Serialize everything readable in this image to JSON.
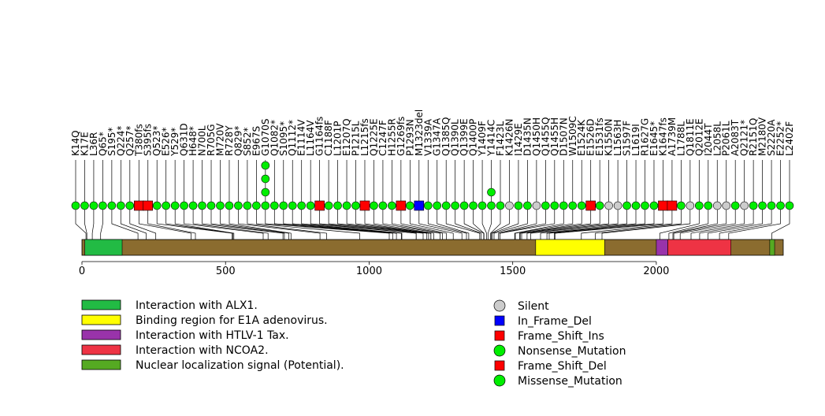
{
  "chart_data": {
    "type": "lollipop",
    "protein_length": 2442,
    "axis": {
      "ticks": [
        0,
        500,
        1000,
        1500,
        2000
      ]
    },
    "domains": [
      {
        "name": "Interaction with ALX1.",
        "start": 10,
        "end": 140,
        "color": "#22bb44"
      },
      {
        "name": "Binding region for E1A adenovirus.",
        "start": 1580,
        "end": 1820,
        "color": "#ffff00"
      },
      {
        "name": "Interaction with HTLV-1 Tax.",
        "start": 2000,
        "end": 2040,
        "color": "#9933aa"
      },
      {
        "name": "Interaction with NCOA2.",
        "start": 2040,
        "end": 2260,
        "color": "#ee3344"
      },
      {
        "name": "Nuclear localization signal (Potential).",
        "start": 2395,
        "end": 2412,
        "color": "#55aa22"
      }
    ],
    "backbone_color": "#8b6c2f",
    "mutation_legend": [
      {
        "label": "Silent",
        "color": "#cccccc",
        "shape": "circle"
      },
      {
        "label": "In_Frame_Del",
        "color": "#0000ff",
        "shape": "square"
      },
      {
        "label": "Frame_Shift_Ins",
        "color": "#ff0000",
        "shape": "square"
      },
      {
        "label": "Nonsense_Mutation",
        "color": "#00ee00",
        "shape": "circle"
      },
      {
        "label": "Frame_Shift_Del",
        "color": "#ff0000",
        "shape": "square"
      },
      {
        "label": "Missense_Mutation",
        "color": "#00ee00",
        "shape": "circle"
      }
    ],
    "mutations": [
      {
        "label": "K14Q",
        "pos": 14,
        "type": "Missense_Mutation",
        "count": 1
      },
      {
        "label": "K17E",
        "pos": 17,
        "type": "Missense_Mutation",
        "count": 1
      },
      {
        "label": "L36R",
        "pos": 36,
        "type": "Missense_Mutation",
        "count": 1
      },
      {
        "label": "Q65*",
        "pos": 65,
        "type": "Nonsense_Mutation",
        "count": 1
      },
      {
        "label": "S195*",
        "pos": 195,
        "type": "Nonsense_Mutation",
        "count": 1
      },
      {
        "label": "Q224*",
        "pos": 224,
        "type": "Nonsense_Mutation",
        "count": 1
      },
      {
        "label": "Q257*",
        "pos": 257,
        "type": "Nonsense_Mutation",
        "count": 1
      },
      {
        "label": "T380fs",
        "pos": 380,
        "type": "Frame_Shift_Del",
        "count": 1
      },
      {
        "label": "S395fs",
        "pos": 395,
        "type": "Frame_Shift_Del",
        "count": 1
      },
      {
        "label": "Q523*",
        "pos": 523,
        "type": "Nonsense_Mutation",
        "count": 1
      },
      {
        "label": "E526*",
        "pos": 526,
        "type": "Nonsense_Mutation",
        "count": 1
      },
      {
        "label": "Y529*",
        "pos": 529,
        "type": "Nonsense_Mutation",
        "count": 1
      },
      {
        "label": "Q631D",
        "pos": 631,
        "type": "Missense_Mutation",
        "count": 1
      },
      {
        "label": "H648*",
        "pos": 648,
        "type": "Nonsense_Mutation",
        "count": 1
      },
      {
        "label": "N700L",
        "pos": 700,
        "type": "Missense_Mutation",
        "count": 1
      },
      {
        "label": "R705G",
        "pos": 705,
        "type": "Missense_Mutation",
        "count": 1
      },
      {
        "label": "M720V",
        "pos": 720,
        "type": "Missense_Mutation",
        "count": 1
      },
      {
        "label": "R728Y",
        "pos": 728,
        "type": "Missense_Mutation",
        "count": 1
      },
      {
        "label": "Q829*",
        "pos": 829,
        "type": "Nonsense_Mutation",
        "count": 1
      },
      {
        "label": "S852*",
        "pos": 852,
        "type": "Nonsense_Mutation",
        "count": 1
      },
      {
        "label": "E967S",
        "pos": 967,
        "type": "Missense_Mutation",
        "count": 1
      },
      {
        "label": "G1070S",
        "pos": 1070,
        "type": "Missense_Mutation",
        "count": 4
      },
      {
        "label": "Q1082*",
        "pos": 1082,
        "type": "Nonsense_Mutation",
        "count": 1
      },
      {
        "label": "S1095*",
        "pos": 1095,
        "type": "Nonsense_Mutation",
        "count": 1
      },
      {
        "label": "Q1112*",
        "pos": 1112,
        "type": "Nonsense_Mutation",
        "count": 1
      },
      {
        "label": "E1114V",
        "pos": 1114,
        "type": "Missense_Mutation",
        "count": 1
      },
      {
        "label": "L1164V",
        "pos": 1164,
        "type": "Missense_Mutation",
        "count": 1
      },
      {
        "label": "G1164fs",
        "pos": 1164,
        "type": "Frame_Shift_Del",
        "count": 1
      },
      {
        "label": "C1188F",
        "pos": 1188,
        "type": "Missense_Mutation",
        "count": 1
      },
      {
        "label": "L1201P",
        "pos": 1201,
        "type": "Missense_Mutation",
        "count": 1
      },
      {
        "label": "E1207Q",
        "pos": 1207,
        "type": "Missense_Mutation",
        "count": 1
      },
      {
        "label": "P1215L",
        "pos": 1215,
        "type": "Missense_Mutation",
        "count": 1
      },
      {
        "label": "L1215fs",
        "pos": 1215,
        "type": "Frame_Shift_Del",
        "count": 1
      },
      {
        "label": "Q1225E",
        "pos": 1225,
        "type": "Missense_Mutation",
        "count": 1
      },
      {
        "label": "C1247F",
        "pos": 1247,
        "type": "Missense_Mutation",
        "count": 1
      },
      {
        "label": "H1255R",
        "pos": 1255,
        "type": "Missense_Mutation",
        "count": 1
      },
      {
        "label": "G1269fs",
        "pos": 1269,
        "type": "Frame_Shift_Del",
        "count": 1
      },
      {
        "label": "P1293N",
        "pos": 1293,
        "type": "Missense_Mutation",
        "count": 1
      },
      {
        "label": "M1323del",
        "pos": 1323,
        "type": "In_Frame_Del",
        "count": 1
      },
      {
        "label": "V1339A",
        "pos": 1339,
        "type": "Missense_Mutation",
        "count": 1
      },
      {
        "label": "G1347A",
        "pos": 1347,
        "type": "Missense_Mutation",
        "count": 1
      },
      {
        "label": "Q1385Q",
        "pos": 1385,
        "type": "Missense_Mutation",
        "count": 1
      },
      {
        "label": "Q1390L",
        "pos": 1390,
        "type": "Missense_Mutation",
        "count": 1
      },
      {
        "label": "Q1399E",
        "pos": 1399,
        "type": "Missense_Mutation",
        "count": 1
      },
      {
        "label": "Q1400P",
        "pos": 1400,
        "type": "Missense_Mutation",
        "count": 1
      },
      {
        "label": "Y1409F",
        "pos": 1409,
        "type": "Missense_Mutation",
        "count": 1
      },
      {
        "label": "Y1414C",
        "pos": 1414,
        "type": "Missense_Mutation",
        "count": 2
      },
      {
        "label": "F1423L",
        "pos": 1423,
        "type": "Missense_Mutation",
        "count": 1
      },
      {
        "label": "K1426N",
        "pos": 1426,
        "type": "Silent",
        "count": 1
      },
      {
        "label": "I1429E",
        "pos": 1429,
        "type": "Missense_Mutation",
        "count": 1
      },
      {
        "label": "D1435N",
        "pos": 1435,
        "type": "Missense_Mutation",
        "count": 1
      },
      {
        "label": "Q1450H",
        "pos": 1450,
        "type": "Silent",
        "count": 1
      },
      {
        "label": "Q1455Q",
        "pos": 1455,
        "type": "Missense_Mutation",
        "count": 1
      },
      {
        "label": "Q1455H",
        "pos": 1455,
        "type": "Missense_Mutation",
        "count": 1
      },
      {
        "label": "D1507N",
        "pos": 1507,
        "type": "Missense_Mutation",
        "count": 1
      },
      {
        "label": "W1509C",
        "pos": 1509,
        "type": "Missense_Mutation",
        "count": 1
      },
      {
        "label": "E1524K",
        "pos": 1524,
        "type": "Missense_Mutation",
        "count": 1
      },
      {
        "label": "E1526D",
        "pos": 1526,
        "type": "Frame_Shift_Ins",
        "count": 1
      },
      {
        "label": "E1531fs",
        "pos": 1531,
        "type": "Missense_Mutation",
        "count": 1
      },
      {
        "label": "K1550N",
        "pos": 1550,
        "type": "Silent",
        "count": 1
      },
      {
        "label": "L1563H",
        "pos": 1563,
        "type": "Silent",
        "count": 1
      },
      {
        "label": "S1597F",
        "pos": 1597,
        "type": "Missense_Mutation",
        "count": 1
      },
      {
        "label": "L1619I",
        "pos": 1619,
        "type": "Missense_Mutation",
        "count": 1
      },
      {
        "label": "R1627G",
        "pos": 1627,
        "type": "Missense_Mutation",
        "count": 1
      },
      {
        "label": "E1645*",
        "pos": 1645,
        "type": "Nonsense_Mutation",
        "count": 1
      },
      {
        "label": "K1647fs",
        "pos": 1647,
        "type": "Frame_Shift_Del",
        "count": 1
      },
      {
        "label": "A1739M",
        "pos": 1739,
        "type": "Frame_Shift_Del",
        "count": 1
      },
      {
        "label": "L1788L",
        "pos": 1788,
        "type": "Missense_Mutation",
        "count": 1
      },
      {
        "label": "Q1811E",
        "pos": 1811,
        "type": "Silent",
        "count": 1
      },
      {
        "label": "Q2012E",
        "pos": 2012,
        "type": "Missense_Mutation",
        "count": 1
      },
      {
        "label": "I2044T",
        "pos": 2044,
        "type": "Missense_Mutation",
        "count": 1
      },
      {
        "label": "L2058L",
        "pos": 2058,
        "type": "Silent",
        "count": 1
      },
      {
        "label": "P2061L",
        "pos": 2061,
        "type": "Silent",
        "count": 1
      },
      {
        "label": "A2083T",
        "pos": 2083,
        "type": "Missense_Mutation",
        "count": 1
      },
      {
        "label": "Q2121*",
        "pos": 2121,
        "type": "Silent",
        "count": 1
      },
      {
        "label": "R2151Q",
        "pos": 2151,
        "type": "Missense_Mutation",
        "count": 1
      },
      {
        "label": "M2180V",
        "pos": 2180,
        "type": "Missense_Mutation",
        "count": 1
      },
      {
        "label": "S2220A",
        "pos": 2220,
        "type": "Missense_Mutation",
        "count": 1
      },
      {
        "label": "E2252*",
        "pos": 2252,
        "type": "Missense_Mutation",
        "count": 1
      },
      {
        "label": "L2402F",
        "pos": 2402,
        "type": "Missense_Mutation",
        "count": 1
      }
    ]
  }
}
